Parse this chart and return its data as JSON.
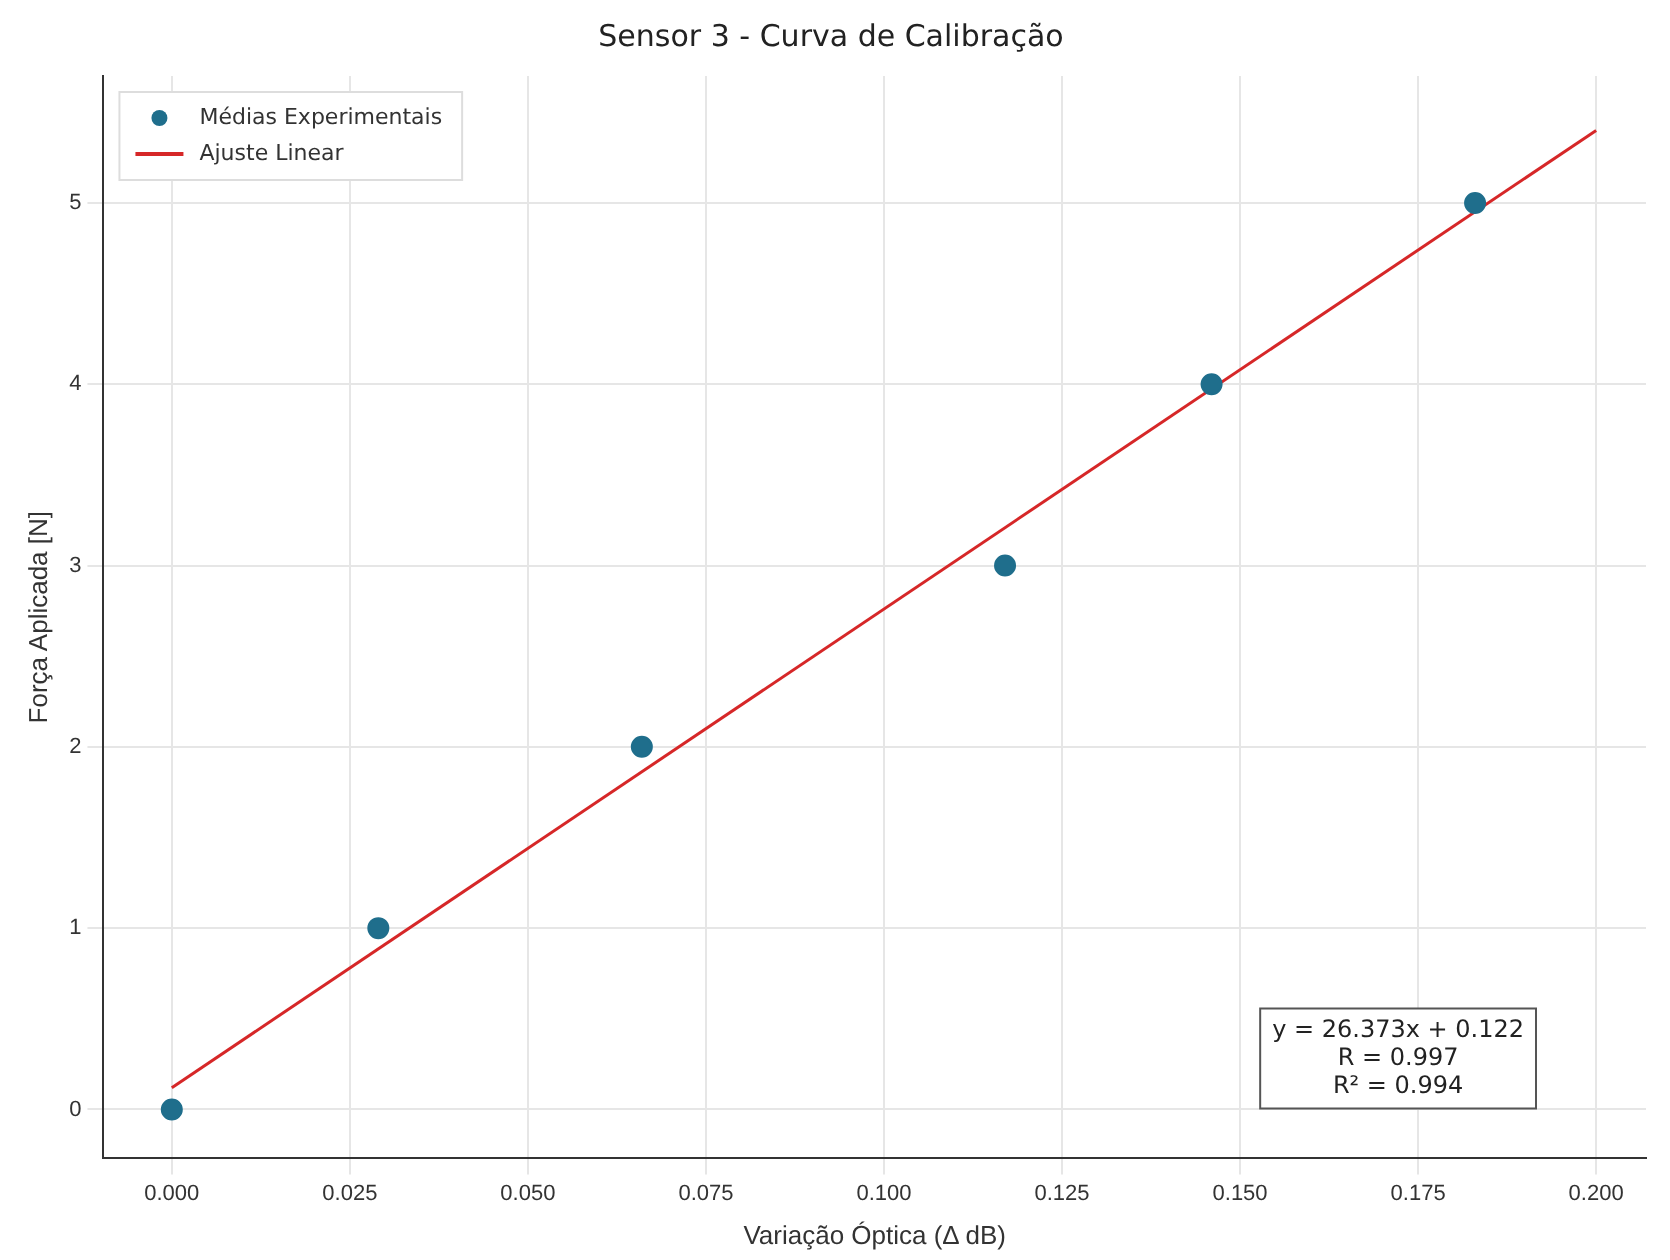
{
  "chart_data": {
    "type": "scatter",
    "title": "Sensor 3 - Curva de Calibração",
    "xlabel": "Variação Óptica (Δ dB)",
    "ylabel": "Força Aplicada [N]",
    "series": [
      {
        "name": "Médias Experimentais",
        "color": "#1f6e8c",
        "x": [
          0,
          0.029,
          0.066,
          0.117,
          0.146,
          0.183
        ],
        "values": [
          0,
          1,
          2,
          3,
          4,
          5
        ]
      },
      {
        "name": "Ajuste Linear",
        "type": "line",
        "marker": "none",
        "color": "#d62728",
        "x": [
          0,
          0.2
        ],
        "values": [
          0.12,
          5.4
        ]
      }
    ],
    "annotations": [
      "y = 26.373x + 0.122\nR = 0.997\nR² = 0.994"
    ],
    "xlim": [
      -0.0096,
      0.207
    ],
    "xticks": [
      {
        "value": 0,
        "label": "0.000"
      },
      {
        "value": 0.025,
        "label": "0.025"
      },
      {
        "value": 0.05,
        "label": "0.050"
      },
      {
        "value": 0.075,
        "label": "0.075"
      },
      {
        "value": 0.1,
        "label": "0.100"
      },
      {
        "value": 0.125,
        "label": "0.125"
      },
      {
        "value": 0.15,
        "label": "0.150"
      },
      {
        "value": 0.175,
        "label": "0.175"
      },
      {
        "value": 0.2,
        "label": "0.200"
      }
    ],
    "ylim": [
      -0.27,
      5.7
    ],
    "yticks": [
      0,
      1,
      2,
      3,
      4,
      5
    ],
    "grid": true,
    "legend": "top left",
    "marker": "circle",
    "line_style": "solid"
  }
}
